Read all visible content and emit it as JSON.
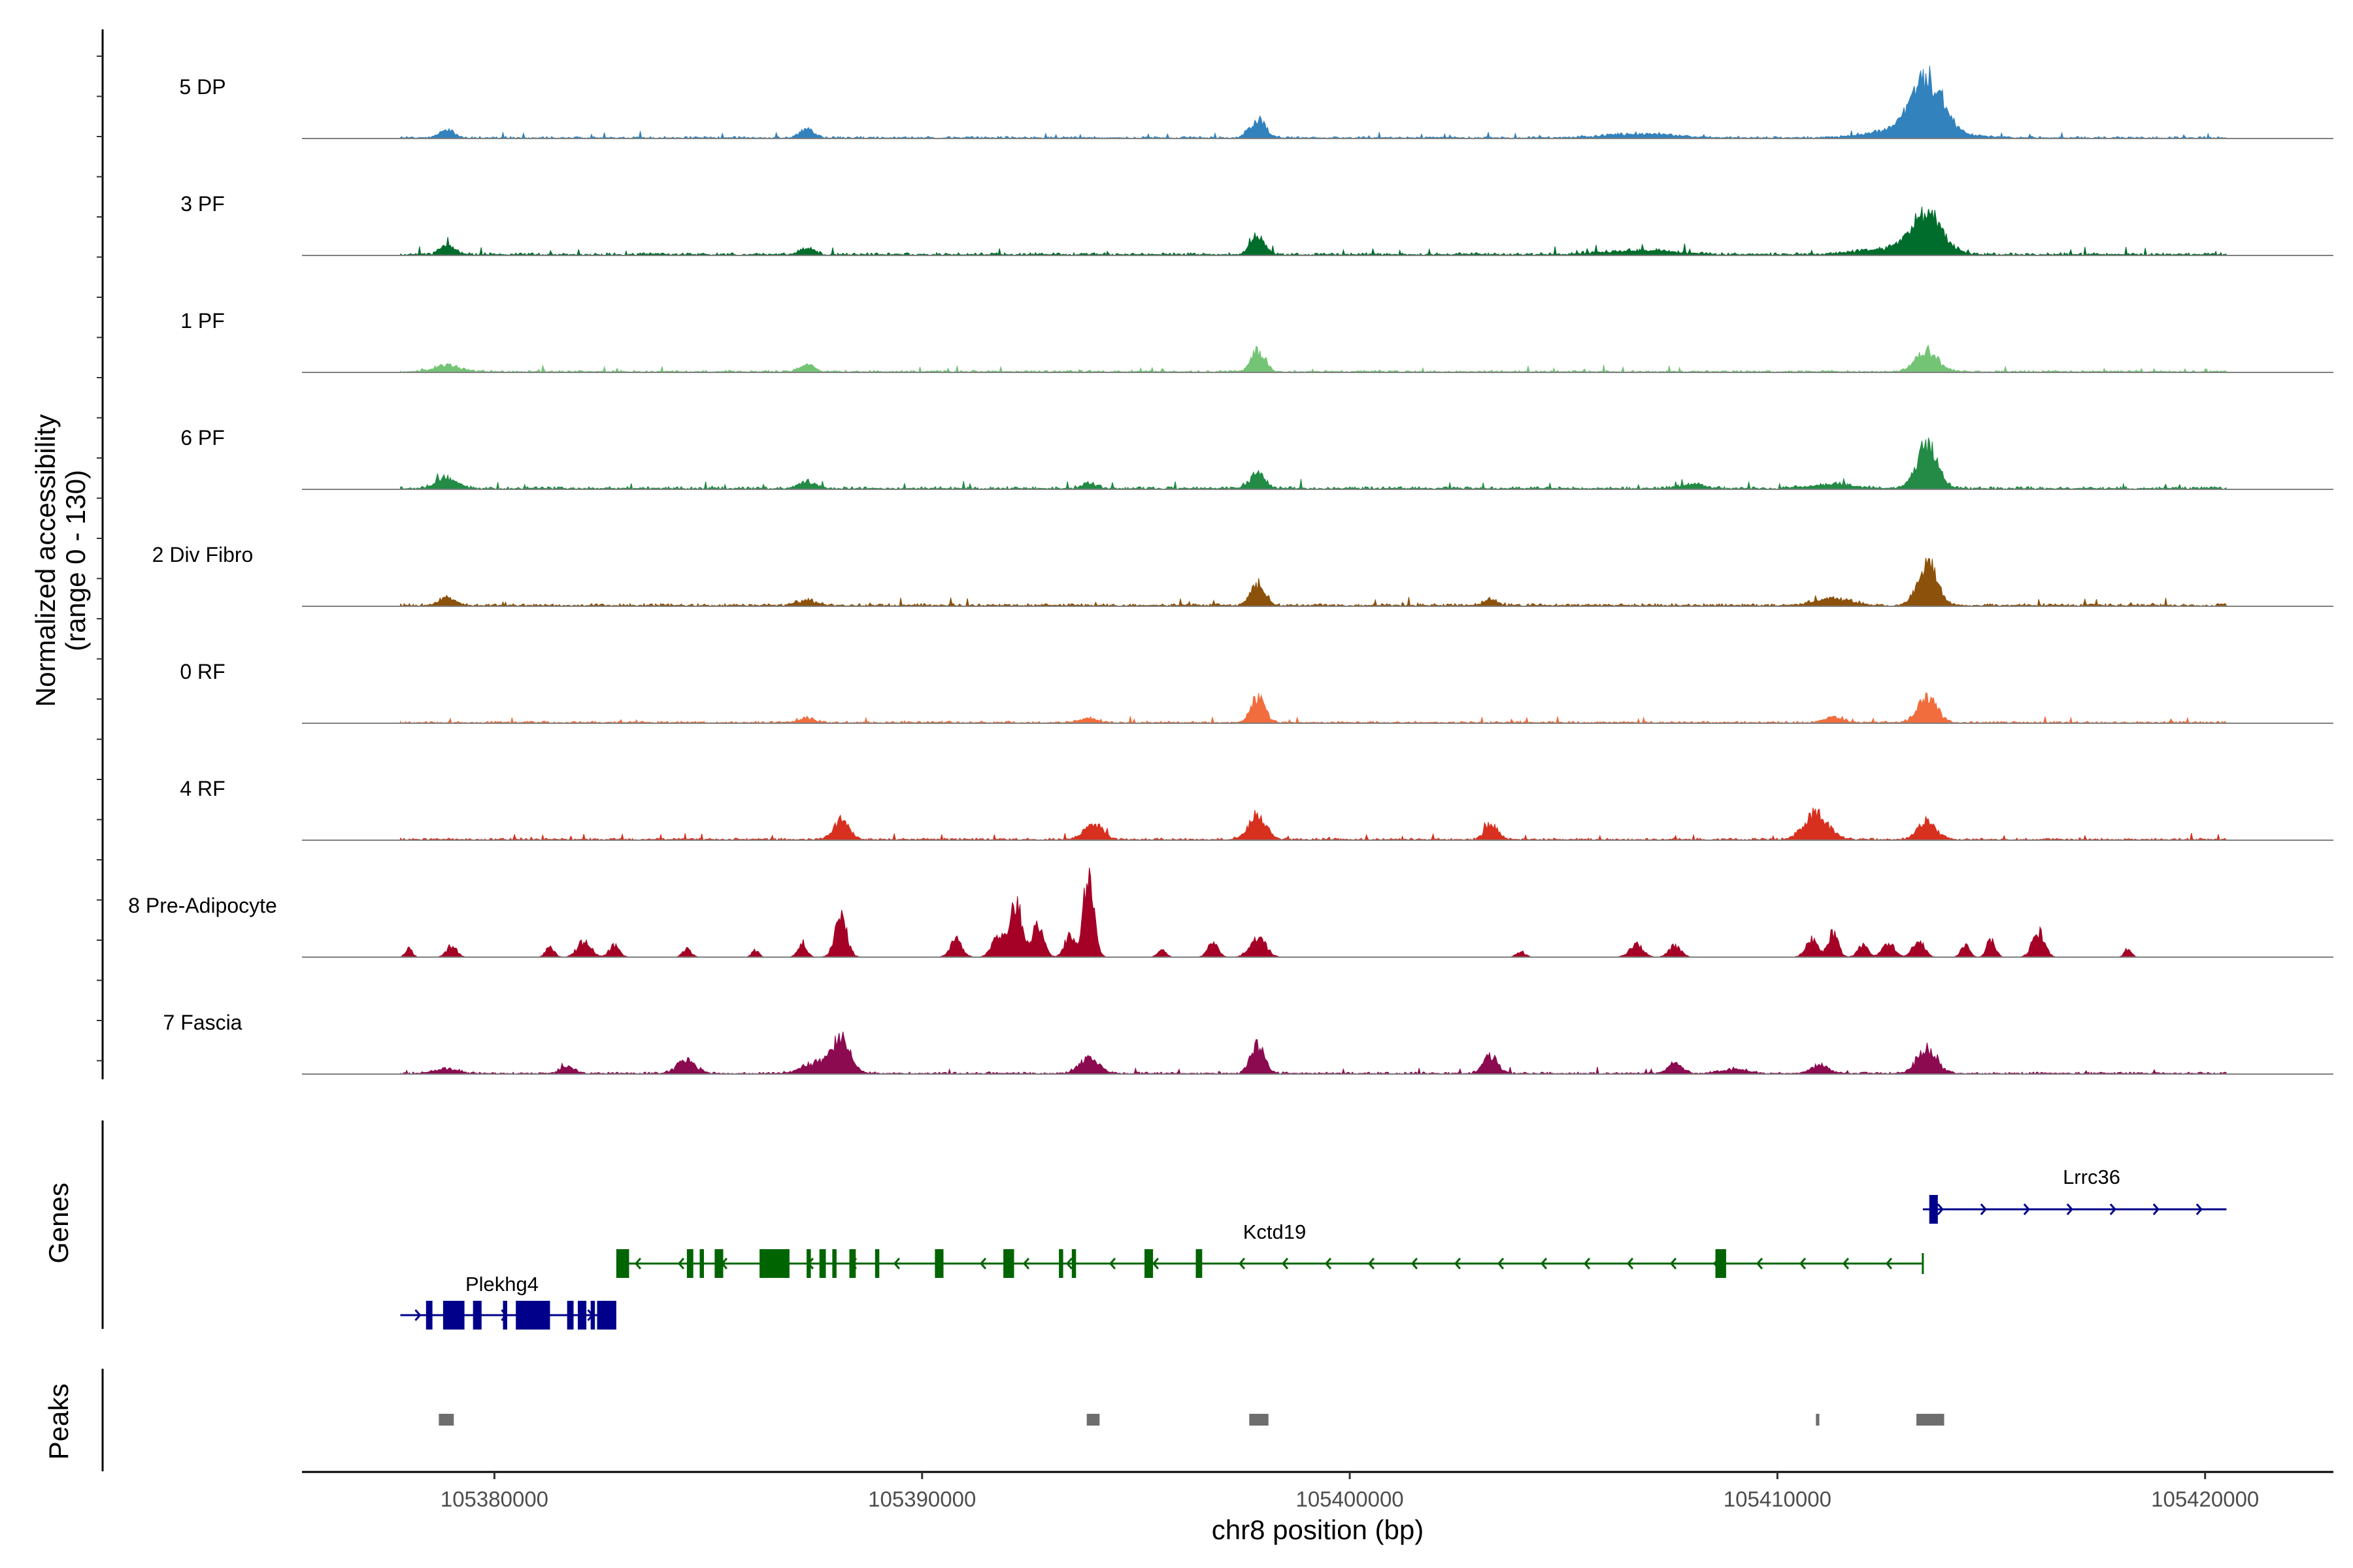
{
  "chart_data": {
    "type": "area",
    "title": "",
    "region": "chr8",
    "xlabel": "chr8 position (bp)",
    "ylabel_line1": "Normalized accessibility",
    "ylabel_line2": "(range 0 - 130)",
    "xlim": [
      105375500,
      105423000
    ],
    "ylim": [
      0,
      130
    ],
    "x_ticks": [
      105380000,
      105390000,
      105400000,
      105410000,
      105420000
    ],
    "x_tick_labels": [
      "105380000",
      "105390000",
      "105400000",
      "105410000",
      "105420000"
    ],
    "track_start": 105377800,
    "track_end": 105420500,
    "tracks": [
      {
        "name": "5 DP",
        "color": "#3182bd",
        "baseline": 3,
        "peaks": [
          [
            105378900,
            12,
            160
          ],
          [
            105387300,
            12,
            160
          ],
          [
            105397850,
            26,
            180
          ],
          [
            105413500,
            70,
            350
          ],
          [
            105413200,
            16,
            800
          ],
          [
            105406800,
            6,
            800
          ]
        ]
      },
      {
        "name": "3 PF",
        "color": "#006d2c",
        "baseline": 4,
        "peaks": [
          [
            105378900,
            14,
            160
          ],
          [
            105387300,
            10,
            160
          ],
          [
            105397850,
            26,
            160
          ],
          [
            105413500,
            52,
            340
          ],
          [
            105412800,
            10,
            800
          ],
          [
            105406800,
            6,
            800
          ]
        ]
      },
      {
        "name": "1 PF",
        "color": "#74c476",
        "baseline": 3,
        "peaks": [
          [
            105378900,
            9,
            300
          ],
          [
            105387300,
            10,
            160
          ],
          [
            105397850,
            30,
            160
          ],
          [
            105413500,
            30,
            260
          ]
        ]
      },
      {
        "name": "6 PF",
        "color": "#238b45",
        "baseline": 4,
        "peaks": [
          [
            105378900,
            14,
            260
          ],
          [
            105387300,
            9,
            200
          ],
          [
            105393900,
            8,
            160
          ],
          [
            105397850,
            22,
            160
          ],
          [
            105413500,
            60,
            240
          ],
          [
            105411300,
            6,
            500
          ],
          [
            105408000,
            6,
            300
          ]
        ]
      },
      {
        "name": "2 Div Fibro",
        "color": "#8c510a",
        "baseline": 4,
        "peaks": [
          [
            105378900,
            10,
            200
          ],
          [
            105387300,
            8,
            200
          ],
          [
            105397850,
            30,
            160
          ],
          [
            105413500,
            60,
            220
          ],
          [
            105411300,
            10,
            400
          ],
          [
            105403300,
            8,
            160
          ]
        ]
      },
      {
        "name": "0 RF",
        "color": "#f16d3e",
        "baseline": 3,
        "peaks": [
          [
            105397850,
            38,
            160
          ],
          [
            105413500,
            36,
            220
          ],
          [
            105411300,
            8,
            200
          ],
          [
            105387300,
            6,
            200
          ],
          [
            105393900,
            6,
            200
          ]
        ]
      },
      {
        "name": "4 RF",
        "color": "#d7301f",
        "baseline": 3,
        "peaks": [
          [
            105388100,
            26,
            180
          ],
          [
            105394000,
            22,
            220
          ],
          [
            105397850,
            34,
            200
          ],
          [
            105403300,
            20,
            160
          ],
          [
            105410900,
            36,
            280
          ],
          [
            105413500,
            28,
            200
          ]
        ]
      },
      {
        "name": "8 Pre-Adipocyte",
        "color": "#a50026",
        "baseline": 0,
        "peaks": [
          [
            105378000,
            12,
            80
          ],
          [
            105379000,
            16,
            120
          ],
          [
            105381300,
            14,
            100
          ],
          [
            105382100,
            22,
            160
          ],
          [
            105382800,
            16,
            120
          ],
          [
            105384500,
            12,
            100
          ],
          [
            105386100,
            10,
            80
          ],
          [
            105387200,
            22,
            100
          ],
          [
            105388100,
            55,
            140
          ],
          [
            105390800,
            24,
            140
          ],
          [
            105391800,
            28,
            160
          ],
          [
            105392200,
            80,
            130
          ],
          [
            105392700,
            44,
            140
          ],
          [
            105393900,
            125,
            120
          ],
          [
            105393450,
            30,
            120
          ],
          [
            105395600,
            10,
            100
          ],
          [
            105397850,
            30,
            180
          ],
          [
            105396800,
            20,
            120
          ],
          [
            105404000,
            8,
            100
          ],
          [
            105406700,
            18,
            160
          ],
          [
            105407600,
            16,
            140
          ],
          [
            105410800,
            24,
            140
          ],
          [
            105411300,
            34,
            120
          ],
          [
            105412000,
            18,
            120
          ],
          [
            105412600,
            20,
            140
          ],
          [
            105413300,
            22,
            140
          ],
          [
            105414400,
            18,
            100
          ],
          [
            105415000,
            26,
            100
          ],
          [
            105416100,
            36,
            140
          ],
          [
            105418200,
            12,
            80
          ]
        ]
      },
      {
        "name": "7 Fascia",
        "color": "#8b0a50",
        "baseline": 3,
        "peaks": [
          [
            105378900,
            8,
            250
          ],
          [
            105381700,
            10,
            160
          ],
          [
            105384500,
            18,
            220
          ],
          [
            105387500,
            14,
            300
          ],
          [
            105388100,
            48,
            220
          ],
          [
            105393900,
            22,
            220
          ],
          [
            105397850,
            40,
            160
          ],
          [
            105403300,
            26,
            160
          ],
          [
            105407600,
            14,
            160
          ],
          [
            105411000,
            12,
            200
          ],
          [
            105413500,
            34,
            220
          ],
          [
            105409000,
            6,
            300
          ]
        ]
      }
    ],
    "genes": [
      {
        "name": "Plekhg4",
        "strand": "+",
        "color": "#00008b",
        "start": 105377800,
        "end": 105382850,
        "exons": [
          [
            105378400,
            105378550
          ],
          [
            105378800,
            105379300
          ],
          [
            105379500,
            105379700
          ],
          [
            105380200,
            105380300
          ],
          [
            105380500,
            105381300
          ],
          [
            105381700,
            105381850
          ],
          [
            105381950,
            105382150
          ],
          [
            105382250,
            105382350
          ],
          [
            105382400,
            105382850
          ]
        ]
      },
      {
        "name": "Kctd19",
        "strand": "-",
        "color": "#006400",
        "start": 105382850,
        "end": 105413400,
        "exons": [
          [
            105382850,
            105383150
          ],
          [
            105384500,
            105384650
          ],
          [
            105384800,
            105384900
          ],
          [
            105385150,
            105385350
          ],
          [
            105386200,
            105386900
          ],
          [
            105387300,
            105387400
          ],
          [
            105387600,
            105387750
          ],
          [
            105387900,
            105388000
          ],
          [
            105388300,
            105388450
          ],
          [
            105388900,
            105389000
          ],
          [
            105390300,
            105390500
          ],
          [
            105391900,
            105392150
          ],
          [
            105393200,
            105393300
          ],
          [
            105393500,
            105393600
          ],
          [
            105395200,
            105395400
          ],
          [
            105396400,
            105396550
          ],
          [
            105408550,
            105408800
          ]
        ]
      },
      {
        "name": "Lrrc36",
        "strand": "+",
        "color": "#00008b",
        "start": 105413400,
        "end": 105420500,
        "exons": [
          [
            105413550,
            105413750
          ]
        ]
      }
    ],
    "peaks_track": [
      [
        105378700,
        105379050
      ],
      [
        105393850,
        105394150
      ],
      [
        105397650,
        105398100
      ],
      [
        105410900,
        105410980
      ],
      [
        105413250,
        105413900
      ]
    ],
    "track_label_title_genes": "Genes",
    "track_label_title_peaks": "Peaks"
  },
  "colors": {
    "baseline_line": "#808080",
    "axis": "#000000",
    "peak_box": "#6e6e6e"
  }
}
